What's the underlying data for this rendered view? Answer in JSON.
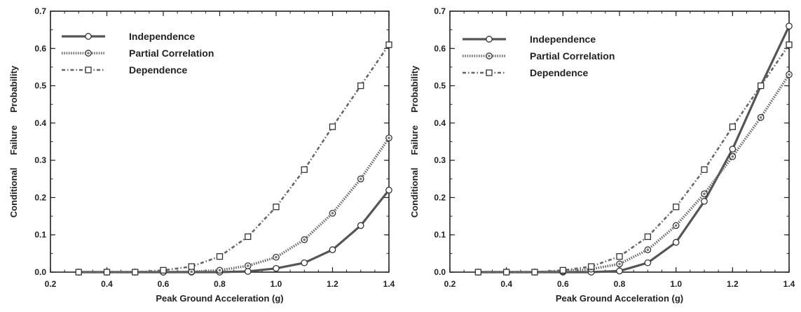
{
  "chart_data": [
    {
      "type": "line",
      "xlabel": "Peak Ground Acceleration (g)",
      "ylabel": [
        "Conditional",
        "Failure",
        "Probability"
      ],
      "xlim": [
        0.2,
        1.4
      ],
      "ylim": [
        0.0,
        0.7
      ],
      "xticks": [
        "0.2",
        "0.4",
        "0.6",
        "0.8",
        "1.0",
        "1.2",
        "1.4"
      ],
      "yticks": [
        "0.0",
        "0.1",
        "0.2",
        "0.3",
        "0.4",
        "0.5",
        "0.6",
        "0.7"
      ],
      "legend_position": "top-left",
      "x": [
        0.3,
        0.4,
        0.5,
        0.6,
        0.7,
        0.8,
        0.9,
        1.0,
        1.1,
        1.2,
        1.3,
        1.4
      ],
      "series": [
        {
          "name": "Independence",
          "marker": "circle",
          "style": "solid",
          "values": [
            0.0,
            0.0,
            0.0,
            0.0,
            0.0,
            0.0,
            0.002,
            0.01,
            0.025,
            0.06,
            0.125,
            0.22
          ]
        },
        {
          "name": "Partial Correlation",
          "marker": "circle-dot",
          "style": "dotted",
          "values": [
            0.0,
            0.0,
            0.0,
            0.0,
            0.001,
            0.005,
            0.017,
            0.04,
            0.087,
            0.158,
            0.25,
            0.36
          ]
        },
        {
          "name": "Dependence",
          "marker": "square",
          "style": "dashdot",
          "values": [
            0.0,
            0.0,
            0.0,
            0.005,
            0.015,
            0.042,
            0.095,
            0.175,
            0.275,
            0.39,
            0.5,
            0.61
          ]
        }
      ]
    },
    {
      "type": "line",
      "xlabel": "Peak Ground Acceleration (g)",
      "ylabel": [
        "Conditional",
        "Failure",
        "Probability"
      ],
      "xlim": [
        0.2,
        1.4
      ],
      "ylim": [
        0.0,
        0.7
      ],
      "xticks": [
        "0.2",
        "0.4",
        "0.6",
        "0.8",
        "1.0",
        "1.2",
        "1.4"
      ],
      "yticks": [
        "0.0",
        "0.1",
        "0.2",
        "0.3",
        "0.4",
        "0.5",
        "0.6",
        "0.7"
      ],
      "legend_position": "top-left",
      "x": [
        0.3,
        0.4,
        0.5,
        0.6,
        0.7,
        0.8,
        0.9,
        1.0,
        1.1,
        1.2,
        1.3,
        1.4
      ],
      "series": [
        {
          "name": "Independence",
          "marker": "circle",
          "style": "solid",
          "values": [
            0.0,
            0.0,
            0.0,
            0.0,
            0.0,
            0.003,
            0.025,
            0.08,
            0.19,
            0.33,
            0.5,
            0.66
          ]
        },
        {
          "name": "Partial Correlation",
          "marker": "circle-dot",
          "style": "dotted",
          "values": [
            0.0,
            0.0,
            0.0,
            0.002,
            0.008,
            0.022,
            0.06,
            0.125,
            0.21,
            0.31,
            0.415,
            0.53
          ]
        },
        {
          "name": "Dependence",
          "marker": "square",
          "style": "dashdot",
          "values": [
            0.0,
            0.0,
            0.0,
            0.005,
            0.015,
            0.042,
            0.095,
            0.175,
            0.275,
            0.39,
            0.5,
            0.61
          ]
        }
      ]
    }
  ]
}
